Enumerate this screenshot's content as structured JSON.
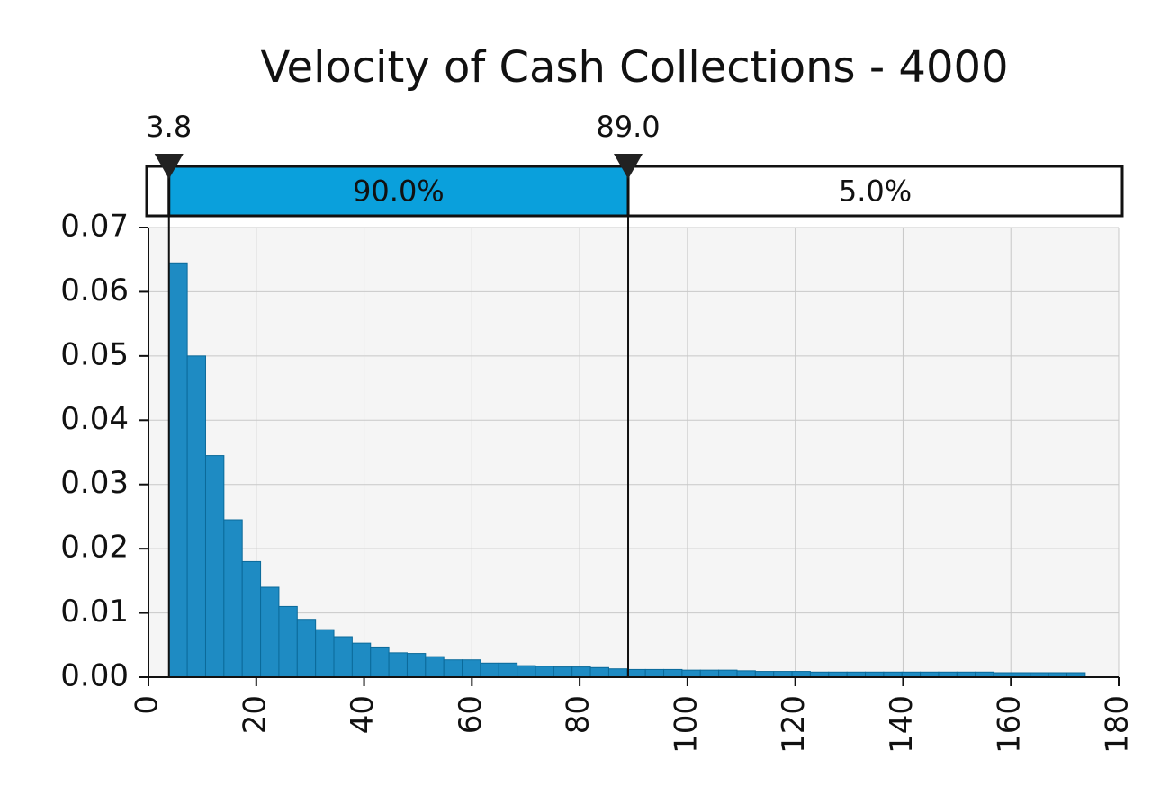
{
  "chart_data": {
    "type": "histogram",
    "title": "Velocity of Cash Collections - 4000",
    "bins": [
      3.8,
      7.2,
      10.6,
      14,
      17.4,
      20.8,
      24.2,
      27.6,
      31,
      34.4,
      37.8,
      41.2,
      44.6,
      48,
      51.4,
      54.8,
      58.2,
      61.6,
      65,
      68.4,
      71.8,
      75.2,
      78.6,
      82,
      85.4,
      88.8,
      92.2,
      95.6,
      99,
      102.4,
      105.8,
      109.2,
      112.6,
      116,
      119.4,
      122.8,
      126.2,
      129.6,
      133,
      136.4,
      139.8,
      143.2,
      146.6,
      150,
      153.4,
      156.8,
      160.2,
      163.6,
      167,
      170.4,
      173.8
    ],
    "values": [
      0.0645,
      0.05,
      0.0345,
      0.0245,
      0.018,
      0.014,
      0.011,
      0.009,
      0.0074,
      0.0063,
      0.0053,
      0.0047,
      0.0038,
      0.0037,
      0.0032,
      0.0027,
      0.0027,
      0.0022,
      0.0022,
      0.0018,
      0.0017,
      0.0016,
      0.0016,
      0.0015,
      0.0013,
      0.0012,
      0.0012,
      0.0012,
      0.0011,
      0.0011,
      0.0011,
      0.001,
      0.0009,
      0.0009,
      0.0009,
      0.0008,
      0.0008,
      0.0008,
      0.0008,
      0.0008,
      0.0008,
      0.0008,
      0.0008,
      0.0008,
      0.0008,
      0.0007,
      0.0007,
      0.0007,
      0.0007,
      0.0007
    ],
    "color": "#1e8bc3",
    "xlim": [
      0,
      180
    ],
    "xticks": [
      0,
      20,
      40,
      60,
      80,
      100,
      120,
      140,
      160,
      180
    ],
    "ylim": [
      0,
      0.07
    ],
    "yticks": [
      {
        "value": 0,
        "label": "0.00"
      },
      0.01,
      0.02,
      0.03,
      0.04,
      0.05,
      0.06,
      0.07
    ],
    "grid": true,
    "markers": [
      3.8,
      {
        "value": 89,
        "label": "89.0"
      }
    ],
    "regions": [
      {
        "value": 90,
        "label": "90.0%"
      },
      {
        "value": 5,
        "label": "5.0%"
      }
    ],
    "region_color": "#0aa0dc"
  }
}
